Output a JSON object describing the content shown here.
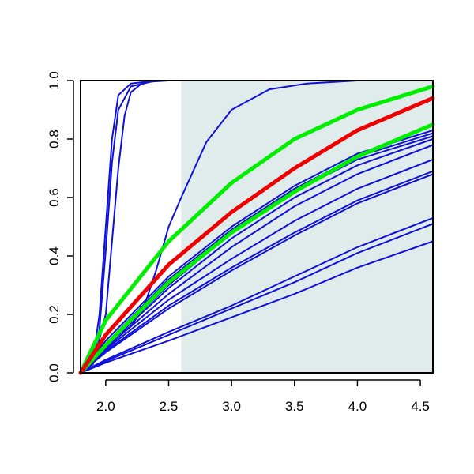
{
  "chart_data": {
    "type": "line",
    "title": "",
    "xlabel": "",
    "ylabel": "",
    "xlim": [
      1.8,
      4.6
    ],
    "ylim": [
      0.0,
      1.0
    ],
    "x_ticks": [
      "2.0",
      "2.5",
      "3.0",
      "3.5",
      "4.0",
      "4.5"
    ],
    "y_ticks": [
      "0.0",
      "0.2",
      "0.4",
      "0.6",
      "0.8",
      "1.0"
    ],
    "grid": false,
    "legend": "none",
    "shaded_region": {
      "x_start": 2.6,
      "x_end": 4.6,
      "color": "#e0ecec"
    },
    "series": [
      {
        "color": "#1010dd",
        "emphasis": false,
        "points": [
          [
            1.8,
            0.0
          ],
          [
            1.9,
            0.05
          ],
          [
            1.95,
            0.2
          ],
          [
            2.0,
            0.5
          ],
          [
            2.05,
            0.8
          ],
          [
            2.1,
            0.95
          ],
          [
            2.2,
            0.99
          ],
          [
            2.4,
            1.0
          ],
          [
            4.6,
            1.0
          ]
        ]
      },
      {
        "color": "#1010dd",
        "emphasis": false,
        "points": [
          [
            1.8,
            0.0
          ],
          [
            1.9,
            0.04
          ],
          [
            1.95,
            0.15
          ],
          [
            2.0,
            0.42
          ],
          [
            2.05,
            0.72
          ],
          [
            2.1,
            0.9
          ],
          [
            2.2,
            0.98
          ],
          [
            2.4,
            1.0
          ],
          [
            4.6,
            1.0
          ]
        ]
      },
      {
        "color": "#1010dd",
        "emphasis": false,
        "points": [
          [
            1.8,
            0.0
          ],
          [
            1.9,
            0.03
          ],
          [
            2.0,
            0.2
          ],
          [
            2.05,
            0.45
          ],
          [
            2.1,
            0.7
          ],
          [
            2.15,
            0.88
          ],
          [
            2.2,
            0.96
          ],
          [
            2.3,
            0.995
          ],
          [
            2.5,
            1.0
          ],
          [
            4.6,
            1.0
          ]
        ]
      },
      {
        "color": "#1010dd",
        "emphasis": false,
        "points": [
          [
            1.8,
            0.0
          ],
          [
            1.9,
            0.05
          ],
          [
            2.0,
            0.1
          ],
          [
            2.2,
            0.16
          ],
          [
            2.3,
            0.22
          ],
          [
            2.4,
            0.35
          ],
          [
            2.5,
            0.5
          ],
          [
            2.6,
            0.6
          ],
          [
            2.8,
            0.79
          ],
          [
            3.0,
            0.9
          ],
          [
            3.3,
            0.97
          ],
          [
            3.6,
            0.99
          ],
          [
            4.0,
            1.0
          ],
          [
            4.6,
            1.0
          ]
        ]
      },
      {
        "color": "#1010dd",
        "emphasis": false,
        "points": [
          [
            1.8,
            0.0
          ],
          [
            2.0,
            0.11
          ],
          [
            2.5,
            0.33
          ],
          [
            3.0,
            0.5
          ],
          [
            3.5,
            0.64
          ],
          [
            4.0,
            0.75
          ],
          [
            4.6,
            0.83
          ]
        ]
      },
      {
        "color": "#1010dd",
        "emphasis": false,
        "points": [
          [
            1.8,
            0.0
          ],
          [
            2.0,
            0.1
          ],
          [
            2.5,
            0.32
          ],
          [
            3.0,
            0.49
          ],
          [
            3.5,
            0.63
          ],
          [
            4.0,
            0.74
          ],
          [
            4.6,
            0.82
          ]
        ]
      },
      {
        "color": "#1010dd",
        "emphasis": false,
        "points": [
          [
            1.8,
            0.0
          ],
          [
            2.0,
            0.095
          ],
          [
            2.5,
            0.3
          ],
          [
            3.0,
            0.48
          ],
          [
            3.5,
            0.62
          ],
          [
            4.0,
            0.73
          ],
          [
            4.6,
            0.81
          ]
        ]
      },
      {
        "color": "#1010dd",
        "emphasis": false,
        "points": [
          [
            1.8,
            0.0
          ],
          [
            2.0,
            0.09
          ],
          [
            2.5,
            0.29
          ],
          [
            3.0,
            0.46
          ],
          [
            3.5,
            0.6
          ],
          [
            4.0,
            0.71
          ],
          [
            4.6,
            0.8
          ]
        ]
      },
      {
        "color": "#1010dd",
        "emphasis": false,
        "points": [
          [
            1.8,
            0.0
          ],
          [
            2.0,
            0.085
          ],
          [
            2.5,
            0.27
          ],
          [
            3.0,
            0.43
          ],
          [
            3.5,
            0.57
          ],
          [
            4.0,
            0.68
          ],
          [
            4.6,
            0.78
          ]
        ]
      },
      {
        "color": "#1010dd",
        "emphasis": false,
        "points": [
          [
            1.8,
            0.0
          ],
          [
            2.0,
            0.08
          ],
          [
            2.5,
            0.25
          ],
          [
            3.0,
            0.39
          ],
          [
            3.5,
            0.52
          ],
          [
            4.0,
            0.63
          ],
          [
            4.6,
            0.73
          ]
        ]
      },
      {
        "color": "#1010dd",
        "emphasis": false,
        "points": [
          [
            1.8,
            0.0
          ],
          [
            2.0,
            0.075
          ],
          [
            2.5,
            0.23
          ],
          [
            3.0,
            0.36
          ],
          [
            3.5,
            0.48
          ],
          [
            4.0,
            0.59
          ],
          [
            4.6,
            0.69
          ]
        ]
      },
      {
        "color": "#1010dd",
        "emphasis": false,
        "points": [
          [
            1.8,
            0.0
          ],
          [
            2.0,
            0.07
          ],
          [
            2.5,
            0.22
          ],
          [
            3.0,
            0.35
          ],
          [
            3.5,
            0.47
          ],
          [
            4.0,
            0.58
          ],
          [
            4.6,
            0.68
          ]
        ]
      },
      {
        "color": "#1010dd",
        "emphasis": false,
        "points": [
          [
            1.8,
            0.0
          ],
          [
            2.0,
            0.045
          ],
          [
            2.5,
            0.14
          ],
          [
            3.0,
            0.23
          ],
          [
            3.5,
            0.33
          ],
          [
            4.0,
            0.43
          ],
          [
            4.6,
            0.53
          ]
        ]
      },
      {
        "color": "#1010dd",
        "emphasis": false,
        "points": [
          [
            1.8,
            0.0
          ],
          [
            2.0,
            0.04
          ],
          [
            2.5,
            0.13
          ],
          [
            3.0,
            0.22
          ],
          [
            3.5,
            0.31
          ],
          [
            4.0,
            0.41
          ],
          [
            4.6,
            0.51
          ]
        ]
      },
      {
        "color": "#1010dd",
        "emphasis": false,
        "points": [
          [
            1.8,
            0.0
          ],
          [
            2.0,
            0.035
          ],
          [
            2.5,
            0.11
          ],
          [
            3.0,
            0.19
          ],
          [
            3.5,
            0.27
          ],
          [
            4.0,
            0.36
          ],
          [
            4.6,
            0.45
          ]
        ]
      },
      {
        "color": "#00ee00",
        "emphasis": true,
        "points": [
          [
            1.8,
            0.0
          ],
          [
            2.0,
            0.18
          ],
          [
            2.5,
            0.45
          ],
          [
            3.0,
            0.65
          ],
          [
            3.5,
            0.8
          ],
          [
            4.0,
            0.9
          ],
          [
            4.6,
            0.98
          ]
        ]
      },
      {
        "color": "#00ee00",
        "emphasis": true,
        "points": [
          [
            1.8,
            0.0
          ],
          [
            2.0,
            0.095
          ],
          [
            2.5,
            0.31
          ],
          [
            3.0,
            0.48
          ],
          [
            3.5,
            0.62
          ],
          [
            4.0,
            0.74
          ],
          [
            4.6,
            0.85
          ]
        ]
      },
      {
        "color": "#ee0000",
        "emphasis": true,
        "points": [
          [
            1.8,
            0.0
          ],
          [
            2.0,
            0.13
          ],
          [
            2.5,
            0.37
          ],
          [
            3.0,
            0.55
          ],
          [
            3.5,
            0.7
          ],
          [
            4.0,
            0.83
          ],
          [
            4.6,
            0.94
          ]
        ]
      }
    ]
  }
}
